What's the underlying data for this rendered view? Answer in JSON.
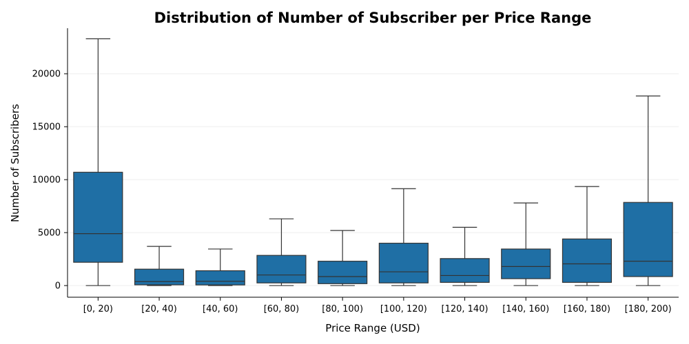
{
  "chart_data": {
    "type": "box",
    "title": "Distribution of Number of Subscriber per Price Range",
    "xlabel": "Price Range (USD)",
    "ylabel": "Number of Subscribers",
    "ylim": [
      -1100,
      24300
    ],
    "yticks": [
      0,
      5000,
      10000,
      15000,
      20000
    ],
    "grid": true,
    "box_color": "#1f6fa5",
    "line_color": "#333333",
    "categories": [
      "[0, 20)",
      "[20, 40)",
      "[40, 60)",
      "[60, 80)",
      "[80, 100)",
      "[100, 120)",
      "[120, 140)",
      "[140, 160)",
      "[160, 180)",
      "[180, 200)"
    ],
    "boxes": [
      {
        "whislo": 0,
        "q1": 2200,
        "med": 4900,
        "q3": 10700,
        "whishi": 23300
      },
      {
        "whislo": 0,
        "q1": 70,
        "med": 380,
        "q3": 1550,
        "whishi": 3700
      },
      {
        "whislo": 0,
        "q1": 60,
        "med": 400,
        "q3": 1400,
        "whishi": 3450
      },
      {
        "whislo": 0,
        "q1": 250,
        "med": 1000,
        "q3": 2850,
        "whishi": 6300
      },
      {
        "whislo": 0,
        "q1": 180,
        "med": 850,
        "q3": 2300,
        "whishi": 5200
      },
      {
        "whislo": 0,
        "q1": 250,
        "med": 1300,
        "q3": 4000,
        "whishi": 9150
      },
      {
        "whislo": 0,
        "q1": 300,
        "med": 950,
        "q3": 2550,
        "whishi": 5500
      },
      {
        "whislo": 0,
        "q1": 650,
        "med": 1800,
        "q3": 3450,
        "whishi": 7800
      },
      {
        "whislo": 0,
        "q1": 300,
        "med": 2050,
        "q3": 4400,
        "whishi": 9350
      },
      {
        "whislo": 0,
        "q1": 850,
        "med": 2300,
        "q3": 7850,
        "whishi": 17900
      }
    ]
  }
}
